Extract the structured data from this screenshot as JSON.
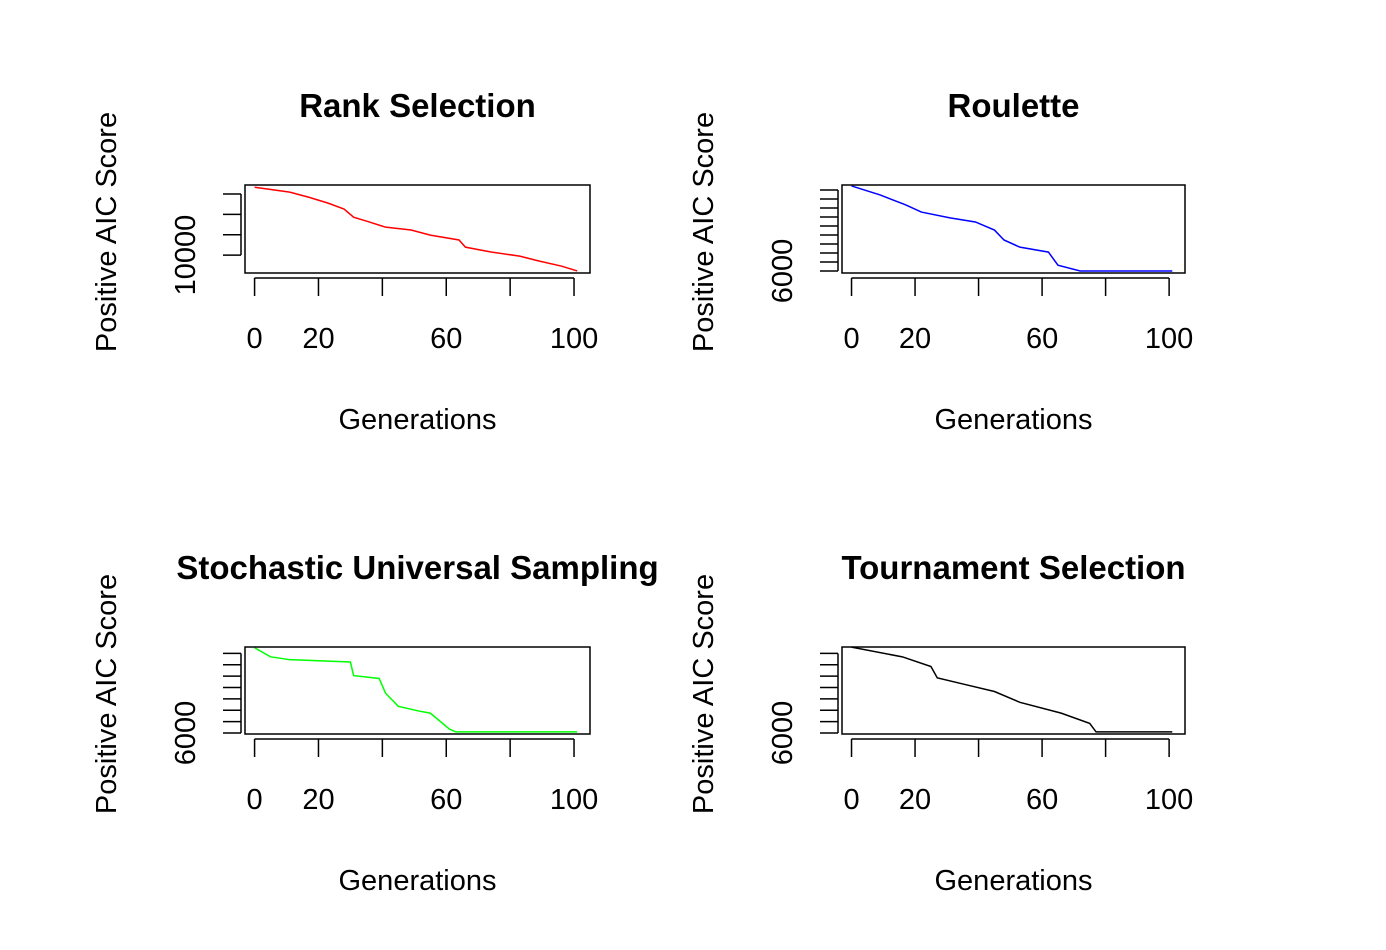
{
  "chart_data": [
    {
      "type": "line",
      "title": "Rank Selection",
      "xlabel": "Generations",
      "ylabel": "Positive AIC Score",
      "x": [
        0,
        11,
        17,
        23,
        28,
        31,
        36,
        41,
        49,
        55,
        64,
        66,
        74,
        83,
        89,
        96,
        101
      ],
      "values": [
        13330,
        13090,
        12840,
        12550,
        12260,
        11860,
        11620,
        11370,
        11230,
        10980,
        10740,
        10390,
        10150,
        9950,
        9710,
        9460,
        9220
      ],
      "color": "#ff0000",
      "xlim": [
        -3,
        105
      ],
      "xticks": [
        0,
        20,
        {
          "value": 40,
          "label": null
        },
        60,
        {
          "value": 80,
          "label": null
        },
        100
      ],
      "ylim": [
        9120,
        13440
      ],
      "yticks": [
        10000,
        {
          "value": 11000,
          "label": null
        },
        {
          "value": 12000,
          "label": null
        },
        {
          "value": 13000,
          "label": null
        }
      ]
    },
    {
      "type": "line",
      "title": "Roulette",
      "xlabel": "Generations",
      "ylabel": "Positive AIC Score",
      "x": [
        0,
        9,
        17,
        22,
        31,
        39,
        45,
        48,
        53,
        62,
        65,
        72,
        101
      ],
      "values": [
        7890,
        7690,
        7470,
        7310,
        7180,
        7090,
        6910,
        6690,
        6530,
        6420,
        6130,
        6000,
        6000
      ],
      "color": "#0000ff",
      "xlim": [
        -3,
        105
      ],
      "xticks": [
        0,
        20,
        {
          "value": 40,
          "label": null
        },
        60,
        {
          "value": 80,
          "label": null
        },
        100
      ],
      "ylim": [
        5956,
        7911
      ],
      "yticks": [
        6000,
        {
          "value": 6200,
          "label": null
        },
        {
          "value": 6400,
          "label": null
        },
        {
          "value": 6600,
          "label": null
        },
        {
          "value": 6800,
          "label": null
        },
        {
          "value": 7000,
          "label": null
        },
        {
          "value": 7200,
          "label": null
        },
        {
          "value": 7400,
          "label": null
        },
        {
          "value": 7600,
          "label": null
        },
        {
          "value": 7800,
          "label": null
        }
      ]
    },
    {
      "type": "line",
      "title": "Stochastic Universal Sampling",
      "xlabel": "Generations",
      "ylabel": "Positive AIC Score",
      "x": [
        0,
        5,
        11,
        30,
        31,
        39,
        41,
        45,
        52,
        55,
        61,
        63,
        101
      ],
      "values": [
        7500,
        7340,
        7290,
        7250,
        7010,
        6960,
        6700,
        6470,
        6380,
        6350,
        6070,
        6020,
        6020
      ],
      "color": "#00ff00",
      "xlim": [
        -3,
        105
      ],
      "xticks": [
        0,
        20,
        {
          "value": 40,
          "label": null
        },
        60,
        {
          "value": 80,
          "label": null
        },
        100
      ],
      "ylim": [
        5983,
        7513
      ],
      "yticks": [
        6000,
        {
          "value": 6200,
          "label": null
        },
        {
          "value": 6400,
          "label": null
        },
        {
          "value": 6600,
          "label": null
        },
        {
          "value": 6800,
          "label": null
        },
        {
          "value": 7000,
          "label": null
        },
        {
          "value": 7200,
          "label": null
        },
        {
          "value": 7400,
          "label": null
        }
      ]
    },
    {
      "type": "line",
      "title": "Tournament Selection",
      "xlabel": "Generations",
      "ylabel": "Positive AIC Score",
      "x": [
        0,
        16,
        25,
        27,
        36,
        45,
        53,
        66,
        75,
        77,
        101
      ],
      "values": [
        7510,
        7340,
        7170,
        6970,
        6850,
        6730,
        6540,
        6350,
        6170,
        6020,
        6020
      ],
      "color": "#000000",
      "xlim": [
        -3,
        105
      ],
      "xticks": [
        0,
        20,
        {
          "value": 40,
          "label": null
        },
        60,
        {
          "value": 80,
          "label": null
        },
        100
      ],
      "ylim": [
        5983,
        7513
      ],
      "yticks": [
        6000,
        {
          "value": 6200,
          "label": null
        },
        {
          "value": 6400,
          "label": null
        },
        {
          "value": 6600,
          "label": null
        },
        {
          "value": 6800,
          "label": null
        },
        {
          "value": 7000,
          "label": null
        },
        {
          "value": 7200,
          "label": null
        },
        {
          "value": 7400,
          "label": null
        }
      ]
    }
  ]
}
